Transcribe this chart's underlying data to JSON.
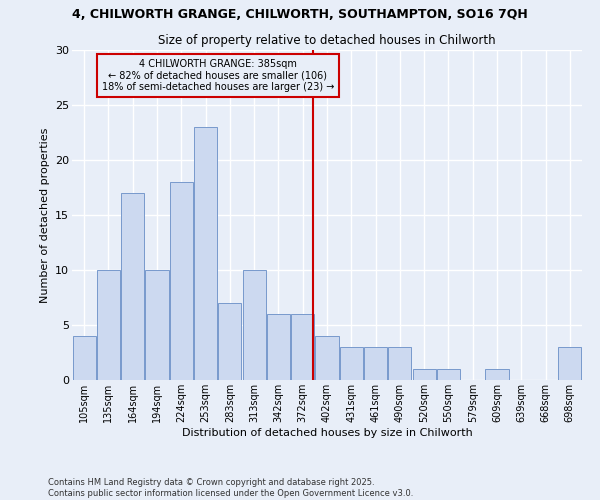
{
  "title": "4, CHILWORTH GRANGE, CHILWORTH, SOUTHAMPTON, SO16 7QH",
  "subtitle": "Size of property relative to detached houses in Chilworth",
  "xlabel": "Distribution of detached houses by size in Chilworth",
  "ylabel": "Number of detached properties",
  "bar_labels": [
    "105sqm",
    "135sqm",
    "164sqm",
    "194sqm",
    "224sqm",
    "253sqm",
    "283sqm",
    "313sqm",
    "342sqm",
    "372sqm",
    "402sqm",
    "431sqm",
    "461sqm",
    "490sqm",
    "520sqm",
    "550sqm",
    "579sqm",
    "609sqm",
    "639sqm",
    "668sqm",
    "698sqm"
  ],
  "bar_values": [
    4,
    10,
    17,
    10,
    18,
    23,
    7,
    10,
    6,
    6,
    4,
    3,
    3,
    3,
    1,
    1,
    0,
    1,
    0,
    0,
    3
  ],
  "bar_color": "#ccd9f0",
  "bar_edge_color": "#7799cc",
  "annotation_text_line1": "4 CHILWORTH GRANGE: 385sqm",
  "annotation_text_line2": "← 82% of detached houses are smaller (106)",
  "annotation_text_line3": "18% of semi-detached houses are larger (23) →",
  "vline_color": "#cc0000",
  "annotation_box_edge_color": "#cc0000",
  "background_color": "#e8eef8",
  "grid_color": "#ffffff",
  "ylim": [
    0,
    30
  ],
  "yticks": [
    0,
    5,
    10,
    15,
    20,
    25,
    30
  ],
  "footer_line1": "Contains HM Land Registry data © Crown copyright and database right 2025.",
  "footer_line2": "Contains public sector information licensed under the Open Government Licence v3.0.",
  "vline_index": 9.43
}
